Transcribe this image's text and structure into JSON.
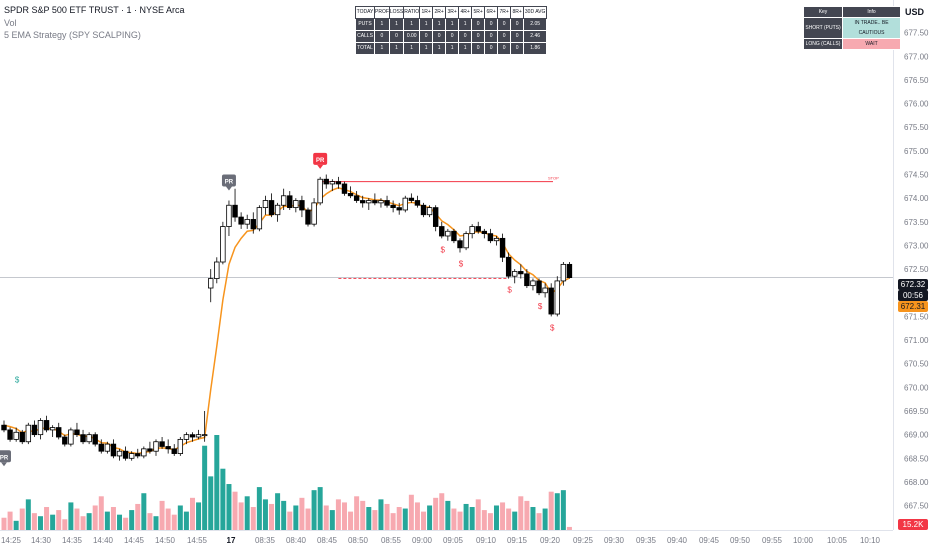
{
  "header": {
    "symbol": "SPDR S&P 500 ETF TRUST · 1 · NYSE Arca",
    "vol": "Vol",
    "strategy": "5 EMA Strategy (SPY SCALPING)"
  },
  "currency": "USD",
  "stats_table": {
    "headers": [
      "TODAY",
      "PROF",
      "LOSS",
      "RATIO",
      "1R+",
      "2R+",
      "3R+",
      "4R+",
      "5R+",
      "6R+",
      "7R+",
      "8R+",
      "30D AVG"
    ],
    "rows": [
      [
        "PUTS",
        "1",
        "1",
        "1",
        "1",
        "1",
        "1",
        "1",
        "0",
        "0",
        "0",
        "0",
        "2.05"
      ],
      [
        "CALLS",
        "0",
        "0",
        "0.00",
        "0",
        "0",
        "0",
        "0",
        "0",
        "0",
        "0",
        "0",
        "2.46"
      ],
      [
        "TOTAL",
        "1",
        "1",
        "1",
        "1",
        "1",
        "1",
        "1",
        "0",
        "0",
        "0",
        "0",
        "1.86"
      ]
    ]
  },
  "key_table": {
    "headers": [
      "Key",
      "Info"
    ],
    "rows": [
      [
        "SHORT (PUTS)",
        "IN TRADE.. BE CAUTIOUS"
      ],
      [
        "LONG (CALLS)",
        "WAIT"
      ]
    ]
  },
  "price_labels": {
    "last": "672.32",
    "countdown": "00:56",
    "ema": "672.31"
  },
  "volume_label": "15.2K",
  "chart_data": {
    "type": "candlestick",
    "y_axis": {
      "ticks": [
        "677.50",
        "677.00",
        "676.50",
        "676.00",
        "675.50",
        "675.00",
        "674.50",
        "674.00",
        "673.50",
        "673.00",
        "672.50",
        "672.00",
        "671.50",
        "671.00",
        "670.50",
        "670.00",
        "669.50",
        "669.00",
        "668.50",
        "668.00",
        "667.50"
      ],
      "range": [
        667.45,
        677.85
      ]
    },
    "x_axis": {
      "labels": [
        "14:25",
        "14:30",
        "14:35",
        "14:40",
        "14:45",
        "14:50",
        "14:55",
        "17",
        "08:35",
        "08:40",
        "08:45",
        "08:50",
        "08:55",
        "09:00",
        "09:05",
        "09:10",
        "09:15",
        "09:20",
        "09:25",
        "09:30",
        "09:35",
        "09:40",
        "09:45",
        "09:50",
        "09:55",
        "10:00",
        "10:05",
        "10:10"
      ]
    },
    "candles": [
      [
        669.2,
        669.3,
        669.05,
        669.1
      ],
      [
        669.1,
        669.15,
        668.85,
        668.9
      ],
      [
        668.9,
        669.15,
        668.85,
        669.05
      ],
      [
        669.05,
        669.1,
        668.8,
        668.85
      ],
      [
        668.85,
        669.25,
        668.8,
        669.2
      ],
      [
        669.2,
        669.3,
        668.95,
        669.0
      ],
      [
        669.0,
        669.35,
        668.9,
        669.3
      ],
      [
        669.3,
        669.4,
        669.05,
        669.1
      ],
      [
        669.1,
        669.2,
        668.95,
        669.15
      ],
      [
        669.15,
        669.25,
        668.9,
        668.95
      ],
      [
        668.95,
        669.0,
        668.75,
        668.8
      ],
      [
        668.8,
        669.15,
        668.75,
        669.1
      ],
      [
        669.1,
        669.25,
        668.95,
        669.0
      ],
      [
        669.0,
        669.1,
        668.8,
        668.85
      ],
      [
        668.85,
        669.05,
        668.8,
        669.0
      ],
      [
        669.0,
        669.05,
        668.75,
        668.8
      ],
      [
        668.8,
        668.9,
        668.6,
        668.65
      ],
      [
        668.65,
        668.85,
        668.6,
        668.8
      ],
      [
        668.8,
        668.9,
        668.5,
        668.55
      ],
      [
        668.55,
        668.7,
        668.45,
        668.65
      ],
      [
        668.65,
        668.75,
        668.45,
        668.5
      ],
      [
        668.5,
        668.65,
        668.45,
        668.6
      ],
      [
        668.6,
        668.7,
        668.5,
        668.55
      ],
      [
        668.55,
        668.75,
        668.5,
        668.7
      ],
      [
        668.7,
        668.85,
        668.6,
        668.65
      ],
      [
        668.65,
        668.9,
        668.55,
        668.85
      ],
      [
        668.85,
        668.95,
        668.7,
        668.75
      ],
      [
        668.75,
        668.9,
        668.6,
        668.7
      ],
      [
        668.7,
        668.8,
        668.55,
        668.6
      ],
      [
        668.6,
        668.95,
        668.55,
        668.9
      ],
      [
        668.9,
        669.05,
        668.8,
        669.0
      ],
      [
        669.0,
        669.05,
        668.85,
        668.95
      ],
      [
        668.95,
        669.1,
        668.9,
        669.0
      ],
      [
        669.0,
        669.5,
        668.85,
        669.0
      ],
      [
        672.1,
        672.5,
        671.8,
        672.3
      ],
      [
        672.3,
        672.75,
        672.2,
        672.65
      ],
      [
        672.65,
        673.5,
        672.6,
        673.4
      ],
      [
        673.4,
        673.95,
        673.2,
        673.85
      ],
      [
        673.85,
        674.2,
        673.5,
        673.6
      ],
      [
        673.6,
        673.7,
        673.35,
        673.45
      ],
      [
        673.45,
        673.65,
        673.35,
        673.55
      ],
      [
        673.55,
        673.7,
        673.25,
        673.35
      ],
      [
        673.35,
        673.85,
        673.3,
        673.8
      ],
      [
        673.8,
        674.05,
        673.65,
        673.95
      ],
      [
        673.95,
        674.1,
        673.6,
        673.65
      ],
      [
        673.65,
        673.9,
        673.5,
        673.85
      ],
      [
        673.85,
        674.2,
        673.75,
        674.05
      ],
      [
        674.05,
        674.15,
        673.75,
        673.8
      ],
      [
        673.8,
        674.0,
        673.7,
        673.95
      ],
      [
        673.95,
        674.05,
        673.6,
        673.75
      ],
      [
        673.75,
        673.8,
        673.4,
        673.45
      ],
      [
        673.45,
        674.0,
        673.4,
        673.9
      ],
      [
        673.9,
        674.45,
        673.85,
        674.4
      ],
      [
        674.4,
        674.5,
        674.2,
        674.3
      ],
      [
        674.3,
        674.4,
        674.15,
        674.35
      ],
      [
        674.35,
        674.45,
        674.2,
        674.3
      ],
      [
        674.3,
        674.35,
        674.05,
        674.1
      ],
      [
        674.1,
        674.25,
        674.0,
        674.05
      ],
      [
        674.05,
        674.15,
        673.9,
        673.95
      ],
      [
        673.95,
        674.05,
        673.8,
        673.9
      ],
      [
        673.9,
        674.0,
        673.75,
        673.95
      ],
      [
        673.95,
        674.1,
        673.85,
        673.9
      ],
      [
        673.9,
        674.0,
        673.8,
        673.95
      ],
      [
        673.95,
        674.05,
        673.8,
        673.85
      ],
      [
        673.85,
        673.95,
        673.7,
        673.8
      ],
      [
        673.8,
        673.9,
        673.65,
        673.75
      ],
      [
        673.75,
        674.05,
        673.7,
        674.0
      ],
      [
        674.0,
        674.1,
        673.9,
        673.95
      ],
      [
        673.95,
        674.05,
        673.8,
        673.85
      ],
      [
        673.85,
        673.9,
        673.6,
        673.65
      ],
      [
        673.65,
        673.85,
        673.6,
        673.8
      ],
      [
        673.8,
        673.85,
        673.3,
        673.4
      ],
      [
        673.4,
        673.5,
        673.15,
        673.2
      ],
      [
        673.2,
        673.35,
        673.1,
        673.3
      ],
      [
        673.3,
        673.35,
        673.05,
        673.1
      ],
      [
        673.1,
        673.15,
        672.85,
        672.95
      ],
      [
        672.95,
        673.3,
        672.9,
        673.25
      ],
      [
        673.25,
        673.45,
        673.15,
        673.4
      ],
      [
        673.4,
        673.5,
        673.25,
        673.3
      ],
      [
        673.3,
        673.35,
        673.15,
        673.25
      ],
      [
        673.25,
        673.35,
        673.05,
        673.1
      ],
      [
        673.1,
        673.2,
        673.0,
        673.15
      ],
      [
        673.15,
        673.25,
        672.65,
        672.75
      ],
      [
        672.75,
        672.85,
        672.3,
        672.35
      ],
      [
        672.35,
        672.5,
        672.2,
        672.45
      ],
      [
        672.45,
        672.6,
        672.3,
        672.4
      ],
      [
        672.4,
        672.5,
        672.1,
        672.15
      ],
      [
        672.15,
        672.3,
        672.05,
        672.25
      ],
      [
        672.25,
        672.3,
        671.95,
        672.0
      ],
      [
        672.0,
        672.2,
        671.9,
        672.1
      ],
      [
        672.1,
        672.2,
        671.5,
        671.55
      ],
      [
        671.55,
        672.35,
        671.5,
        672.25
      ],
      [
        672.25,
        672.65,
        672.15,
        672.6
      ],
      [
        672.6,
        672.65,
        672.3,
        672.32
      ]
    ],
    "ema": [
      669.2,
      669.17,
      669.13,
      669.04,
      669.09,
      669.06,
      669.14,
      669.13,
      669.13,
      669.07,
      668.98,
      669.02,
      669.01,
      668.96,
      668.97,
      668.91,
      668.83,
      668.82,
      668.73,
      668.7,
      668.63,
      668.62,
      668.6,
      668.63,
      668.64,
      668.71,
      668.72,
      668.71,
      668.68,
      668.75,
      668.83,
      668.87,
      668.91,
      668.94,
      669.95,
      670.87,
      671.85,
      672.6,
      672.96,
      673.15,
      673.3,
      673.32,
      673.47,
      673.64,
      673.64,
      673.72,
      673.83,
      673.82,
      673.86,
      673.83,
      673.71,
      673.77,
      673.98,
      674.09,
      674.17,
      674.22,
      674.18,
      674.14,
      674.07,
      674.01,
      673.99,
      673.96,
      673.96,
      673.92,
      673.88,
      673.84,
      673.89,
      673.91,
      673.89,
      673.81,
      673.81,
      673.67,
      673.52,
      673.44,
      673.33,
      673.2,
      673.22,
      673.28,
      673.29,
      673.27,
      673.22,
      673.2,
      673.05,
      672.82,
      672.69,
      672.59,
      672.45,
      672.38,
      672.26,
      672.21,
      671.99,
      672.08,
      672.25,
      672.31
    ],
    "volume": [
      8,
      12,
      6,
      14,
      20,
      11,
      9,
      15,
      10,
      13,
      7,
      18,
      14,
      9,
      11,
      16,
      22,
      12,
      15,
      10,
      8,
      13,
      17,
      24,
      11,
      9,
      19,
      14,
      10,
      16,
      12,
      21,
      18,
      55,
      35,
      62,
      40,
      30,
      25,
      18,
      22,
      15,
      28,
      20,
      17,
      24,
      19,
      12,
      16,
      21,
      14,
      26,
      28,
      16,
      13,
      20,
      18,
      12,
      22,
      19,
      15,
      13,
      20,
      17,
      11,
      15,
      14,
      23,
      18,
      12,
      16,
      21,
      24,
      19,
      14,
      12,
      17,
      15,
      20,
      13,
      11,
      16,
      18,
      14,
      12,
      22,
      19,
      15,
      11,
      14,
      25,
      24,
      26,
      2
    ],
    "markers": [
      {
        "type": "PR",
        "direction": "down",
        "candle": 37
      },
      {
        "type": "PR",
        "direction": "up",
        "candle": 52
      },
      {
        "type": "PR",
        "direction": "down",
        "candle": 0
      },
      {
        "type": "$",
        "color": "#26a69a",
        "candle": 2
      },
      {
        "type": "$",
        "color": "#f23645",
        "candle": 72
      },
      {
        "type": "$",
        "color": "#f23645",
        "candle": 75
      },
      {
        "type": "$",
        "color": "#f23645",
        "candle": 83
      },
      {
        "type": "$",
        "color": "#f23645",
        "candle": 88
      },
      {
        "type": "$",
        "color": "#f23645",
        "candle": 90
      }
    ],
    "stop": {
      "label": "STOP",
      "price": 674.35
    },
    "entry_price": 672.3,
    "colors": {
      "up": "#ffffff",
      "down": "#000000",
      "ema": "#f7941d",
      "vol_up": "#26a69a",
      "vol_down": "#f7a9b0",
      "stop": "#f23645"
    }
  }
}
